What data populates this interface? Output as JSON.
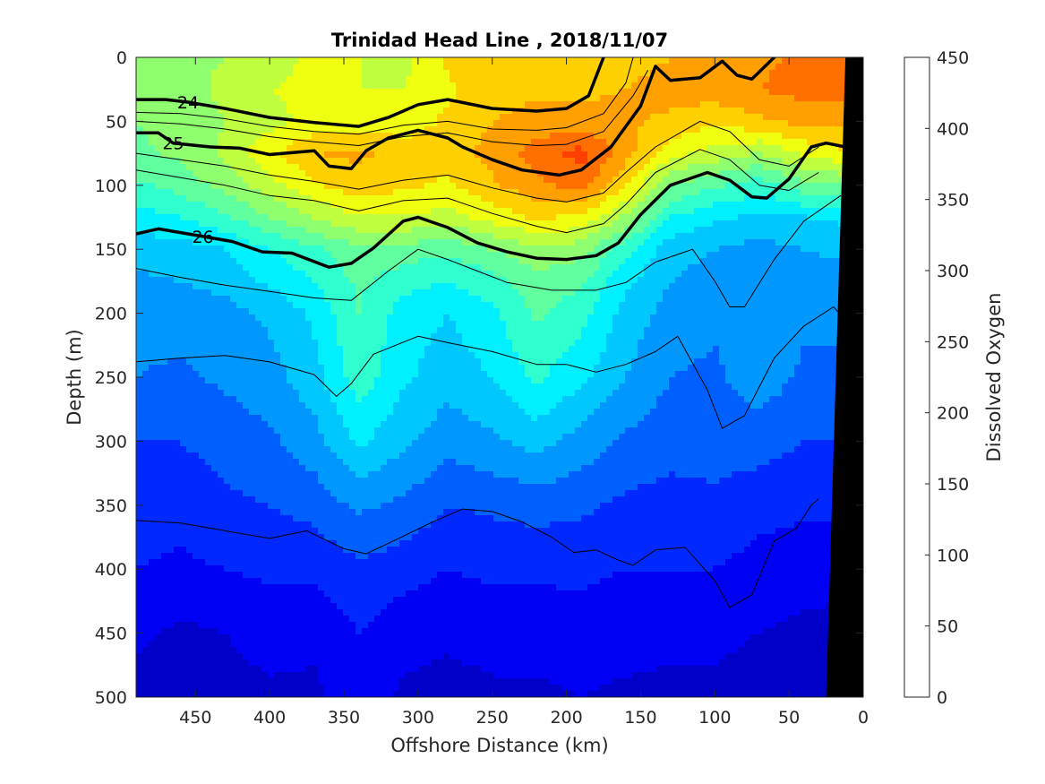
{
  "chart_data": {
    "type": "heatmap",
    "subtype": "filled-contour section",
    "title": "Trinidad Head Line , 2018/11/07",
    "xlabel": "Offshore Distance (km)",
    "ylabel": "Depth (m)",
    "xlim": [
      490,
      0
    ],
    "x_reversed": true,
    "ylim": [
      0,
      500
    ],
    "y_reversed": true,
    "x_ticks": [
      450,
      400,
      350,
      300,
      250,
      200,
      150,
      100,
      50,
      0
    ],
    "y_ticks": [
      0,
      50,
      100,
      150,
      200,
      250,
      300,
      350,
      400,
      450,
      500
    ],
    "colorbar": {
      "label": "Dissolved Oxygen",
      "range": [
        0,
        450
      ],
      "levels": [
        0,
        25,
        50,
        75,
        100,
        125,
        150,
        175,
        200,
        225,
        250,
        275,
        300,
        325,
        350,
        375,
        400,
        425,
        450
      ],
      "ticks": [
        0,
        50,
        100,
        150,
        200,
        250,
        300,
        350,
        400,
        450
      ],
      "colors": [
        "#00008f",
        "#0000c8",
        "#0000f5",
        "#0028ff",
        "#0060ff",
        "#0098ff",
        "#00c8ff",
        "#00f0ff",
        "#30ffcf",
        "#60ff9f",
        "#90ff6f",
        "#c0ff3f",
        "#f0ff10",
        "#ffd000",
        "#ffa000",
        "#ff7000",
        "#ff4000",
        "#f00000",
        "#b80000"
      ]
    },
    "x_grid": [
      490,
      460,
      430,
      400,
      370,
      340,
      310,
      280,
      250,
      220,
      190,
      160,
      130,
      100,
      70,
      40,
      15
    ],
    "y_grid": [
      0,
      25,
      50,
      75,
      100,
      125,
      150,
      175,
      200,
      250,
      300,
      350,
      400,
      450,
      500
    ],
    "oxygen": [
      [
        265,
        270,
        275,
        290,
        305,
        300,
        290,
        330,
        340,
        345,
        345,
        340,
        350,
        360,
        370,
        380,
        390
      ],
      [
        255,
        265,
        280,
        300,
        305,
        300,
        300,
        320,
        340,
        345,
        345,
        350,
        360,
        365,
        375,
        385,
        385
      ],
      [
        250,
        260,
        275,
        290,
        310,
        310,
        310,
        330,
        350,
        360,
        360,
        355,
        345,
        330,
        345,
        360,
        360
      ],
      [
        245,
        255,
        280,
        320,
        350,
        355,
        340,
        340,
        360,
        385,
        410,
        360,
        310,
        290,
        275,
        305,
        320
      ],
      [
        220,
        235,
        260,
        290,
        320,
        340,
        330,
        320,
        345,
        370,
        385,
        330,
        250,
        230,
        210,
        240,
        250
      ],
      [
        190,
        200,
        220,
        250,
        275,
        300,
        300,
        290,
        310,
        330,
        320,
        270,
        200,
        180,
        170,
        175,
        180
      ],
      [
        160,
        165,
        175,
        200,
        220,
        245,
        240,
        230,
        250,
        270,
        260,
        210,
        160,
        150,
        140,
        150,
        155
      ],
      [
        145,
        150,
        160,
        180,
        200,
        230,
        210,
        200,
        215,
        240,
        230,
        180,
        150,
        140,
        140,
        140,
        140
      ],
      [
        135,
        135,
        140,
        155,
        180,
        225,
        190,
        175,
        195,
        230,
        210,
        165,
        140,
        130,
        150,
        130,
        130
      ],
      [
        125,
        120,
        130,
        140,
        165,
        215,
        180,
        160,
        175,
        205,
        180,
        150,
        125,
        120,
        140,
        120,
        120
      ],
      [
        100,
        100,
        110,
        120,
        140,
        180,
        155,
        135,
        145,
        160,
        140,
        120,
        110,
        110,
        110,
        100,
        100
      ],
      [
        90,
        85,
        95,
        100,
        110,
        130,
        120,
        100,
        105,
        110,
        105,
        95,
        90,
        95,
        85,
        80,
        80
      ],
      [
        75,
        70,
        75,
        80,
        80,
        95,
        85,
        75,
        80,
        80,
        80,
        75,
        75,
        75,
        65,
        60,
        55
      ],
      [
        55,
        45,
        50,
        60,
        55,
        75,
        60,
        55,
        60,
        60,
        65,
        60,
        55,
        55,
        50,
        45,
        45
      ],
      [
        40,
        35,
        40,
        45,
        45,
        65,
        45,
        40,
        45,
        45,
        50,
        45,
        45,
        45,
        40,
        35,
        35
      ]
    ],
    "density_contours": [
      {
        "label": "24",
        "bold": true,
        "label_at": [
          455,
          35
        ],
        "points": [
          [
            490,
            33
          ],
          [
            470,
            33
          ],
          [
            455,
            35
          ],
          [
            430,
            40
          ],
          [
            400,
            47
          ],
          [
            370,
            51
          ],
          [
            340,
            54
          ],
          [
            320,
            47
          ],
          [
            300,
            37
          ],
          [
            280,
            33
          ],
          [
            250,
            40
          ],
          [
            220,
            42
          ],
          [
            200,
            40
          ],
          [
            185,
            30
          ],
          [
            175,
            0
          ]
        ]
      },
      {
        "label": "25",
        "bold": true,
        "label_at": [
          465,
          67
        ],
        "points": [
          [
            490,
            59
          ],
          [
            475,
            59
          ],
          [
            465,
            67
          ],
          [
            440,
            70
          ],
          [
            420,
            71
          ],
          [
            400,
            76
          ],
          [
            370,
            73
          ],
          [
            360,
            85
          ],
          [
            345,
            87
          ],
          [
            335,
            73
          ],
          [
            320,
            63
          ],
          [
            300,
            57
          ],
          [
            280,
            63
          ],
          [
            270,
            70
          ],
          [
            250,
            80
          ],
          [
            230,
            88
          ],
          [
            205,
            92
          ],
          [
            190,
            88
          ],
          [
            170,
            70
          ],
          [
            150,
            38
          ],
          [
            140,
            7
          ],
          [
            130,
            18
          ],
          [
            110,
            16
          ],
          [
            95,
            3
          ],
          [
            85,
            14
          ],
          [
            75,
            17
          ],
          [
            60,
            0
          ]
        ]
      },
      {
        "label": "26",
        "bold": true,
        "label_at": [
          445,
          140
        ],
        "points": [
          [
            490,
            138
          ],
          [
            475,
            134
          ],
          [
            445,
            140
          ],
          [
            425,
            144
          ],
          [
            405,
            152
          ],
          [
            385,
            153
          ],
          [
            360,
            164
          ],
          [
            345,
            161
          ],
          [
            330,
            149
          ],
          [
            310,
            128
          ],
          [
            300,
            125
          ],
          [
            280,
            133
          ],
          [
            260,
            145
          ],
          [
            240,
            152
          ],
          [
            220,
            157
          ],
          [
            200,
            158
          ],
          [
            180,
            155
          ],
          [
            165,
            145
          ],
          [
            150,
            123
          ],
          [
            130,
            100
          ],
          [
            105,
            90
          ],
          [
            90,
            96
          ],
          [
            75,
            109
          ],
          [
            65,
            110
          ],
          [
            50,
            95
          ],
          [
            35,
            70
          ],
          [
            25,
            67
          ],
          [
            12,
            70
          ]
        ]
      }
    ],
    "thin_contours": [
      [
        [
          490,
          43
        ],
        [
          460,
          44
        ],
        [
          430,
          48
        ],
        [
          400,
          54
        ],
        [
          370,
          58
        ],
        [
          340,
          60
        ],
        [
          310,
          53
        ],
        [
          280,
          50
        ],
        [
          250,
          56
        ],
        [
          220,
          57
        ],
        [
          200,
          55
        ],
        [
          175,
          44
        ],
        [
          160,
          20
        ],
        [
          155,
          0
        ]
      ],
      [
        [
          490,
          50
        ],
        [
          460,
          52
        ],
        [
          430,
          56
        ],
        [
          400,
          62
        ],
        [
          370,
          66
        ],
        [
          340,
          69
        ],
        [
          310,
          62
        ],
        [
          280,
          59
        ],
        [
          250,
          66
        ],
        [
          220,
          69
        ],
        [
          200,
          68
        ],
        [
          175,
          58
        ],
        [
          155,
          30
        ],
        [
          145,
          10
        ]
      ],
      [
        [
          490,
          75
        ],
        [
          460,
          80
        ],
        [
          430,
          85
        ],
        [
          400,
          92
        ],
        [
          370,
          97
        ],
        [
          340,
          103
        ],
        [
          310,
          96
        ],
        [
          280,
          92
        ],
        [
          250,
          102
        ],
        [
          220,
          110
        ],
        [
          200,
          113
        ],
        [
          175,
          106
        ],
        [
          160,
          90
        ],
        [
          140,
          70
        ],
        [
          110,
          50
        ],
        [
          90,
          58
        ],
        [
          70,
          80
        ],
        [
          50,
          85
        ],
        [
          30,
          70
        ]
      ],
      [
        [
          490,
          88
        ],
        [
          460,
          94
        ],
        [
          430,
          100
        ],
        [
          400,
          108
        ],
        [
          370,
          112
        ],
        [
          340,
          120
        ],
        [
          310,
          112
        ],
        [
          280,
          110
        ],
        [
          250,
          122
        ],
        [
          220,
          132
        ],
        [
          200,
          137
        ],
        [
          175,
          130
        ],
        [
          160,
          115
        ],
        [
          140,
          90
        ],
        [
          110,
          72
        ],
        [
          90,
          80
        ],
        [
          70,
          100
        ],
        [
          50,
          104
        ],
        [
          30,
          90
        ]
      ],
      [
        [
          490,
          165
        ],
        [
          460,
          172
        ],
        [
          430,
          178
        ],
        [
          400,
          183
        ],
        [
          370,
          188
        ],
        [
          345,
          190
        ],
        [
          320,
          167
        ],
        [
          300,
          150
        ],
        [
          280,
          158
        ],
        [
          260,
          167
        ],
        [
          240,
          176
        ],
        [
          210,
          182
        ],
        [
          180,
          182
        ],
        [
          160,
          176
        ],
        [
          140,
          160
        ],
        [
          115,
          150
        ],
        [
          100,
          175
        ],
        [
          90,
          195
        ],
        [
          80,
          195
        ],
        [
          60,
          158
        ],
        [
          40,
          128
        ],
        [
          15,
          108
        ]
      ],
      [
        [
          490,
          238
        ],
        [
          460,
          235
        ],
        [
          430,
          233
        ],
        [
          400,
          238
        ],
        [
          370,
          248
        ],
        [
          355,
          265
        ],
        [
          345,
          255
        ],
        [
          330,
          232
        ],
        [
          300,
          218
        ],
        [
          280,
          223
        ],
        [
          250,
          230
        ],
        [
          220,
          240
        ],
        [
          200,
          240
        ],
        [
          180,
          246
        ],
        [
          160,
          240
        ],
        [
          140,
          230
        ],
        [
          125,
          218
        ],
        [
          105,
          260
        ],
        [
          95,
          290
        ],
        [
          80,
          280
        ],
        [
          60,
          235
        ],
        [
          40,
          210
        ],
        [
          20,
          195
        ],
        [
          10,
          208
        ]
      ],
      [
        [
          490,
          362
        ],
        [
          460,
          364
        ],
        [
          430,
          370
        ],
        [
          400,
          376
        ],
        [
          375,
          370
        ],
        [
          350,
          384
        ],
        [
          335,
          388
        ],
        [
          315,
          377
        ],
        [
          290,
          363
        ],
        [
          270,
          353
        ],
        [
          250,
          355
        ],
        [
          230,
          363
        ],
        [
          210,
          375
        ],
        [
          195,
          387
        ],
        [
          180,
          385
        ],
        [
          165,
          393
        ],
        [
          155,
          397
        ],
        [
          140,
          385
        ],
        [
          120,
          383
        ],
        [
          100,
          409
        ],
        [
          90,
          430
        ],
        [
          75,
          420
        ],
        [
          60,
          378
        ],
        [
          45,
          368
        ],
        [
          35,
          350
        ],
        [
          30,
          345
        ]
      ]
    ],
    "bathymetry_mask": {
      "color": "#000000",
      "points": [
        [
          0,
          0
        ],
        [
          0,
          500
        ],
        [
          25,
          500
        ],
        [
          12,
          0
        ]
      ]
    }
  }
}
